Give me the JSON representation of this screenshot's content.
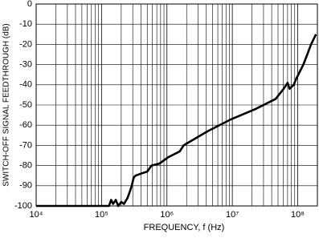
{
  "chart_data": {
    "type": "line",
    "xlabel": "FREQUENCY, f (Hz)",
    "ylabel": "SWITCH-OFF SIGNAL FEEDTHROUGH (dB)",
    "xscale": "log",
    "xlim": [
      10000,
      200000000
    ],
    "xticks": [
      {
        "value": 10000,
        "label": "10⁴"
      },
      {
        "value": 100000,
        "label": "10⁵"
      },
      {
        "value": 1000000,
        "label": "10⁶"
      },
      {
        "value": 10000000,
        "label": "10⁷"
      },
      {
        "value": 100000000,
        "label": "10⁸"
      }
    ],
    "ylim": [
      -100,
      0
    ],
    "yticks": [
      0,
      -10,
      -20,
      -30,
      -40,
      -50,
      -60,
      -70,
      -80,
      -90,
      -100
    ],
    "grid": true,
    "minor_grid": true,
    "series": [
      {
        "color": "#000000",
        "x": [
          10000,
          100000,
          130000,
          140000,
          150000,
          165000,
          180000,
          200000,
          220000,
          250000,
          270000,
          290000,
          310000,
          330000,
          400000,
          500000,
          580000,
          770000,
          1030000,
          1570000,
          1800000,
          4200000,
          9700000,
          22600000,
          46000000,
          61000000,
          70000000,
          75000000,
          87000000,
          95000000,
          122000000,
          140000000,
          160000000,
          190000000
        ],
        "values": [
          -100,
          -100,
          -100,
          -97,
          -99,
          -97,
          -100,
          -98,
          -99,
          -96,
          -93,
          -90,
          -86,
          -85,
          -84,
          -83,
          -80,
          -79,
          -76,
          -73,
          -70,
          -63,
          -57,
          -52,
          -47,
          -42,
          -39,
          -42,
          -40,
          -37,
          -30,
          -25,
          -20,
          -15
        ]
      }
    ]
  }
}
